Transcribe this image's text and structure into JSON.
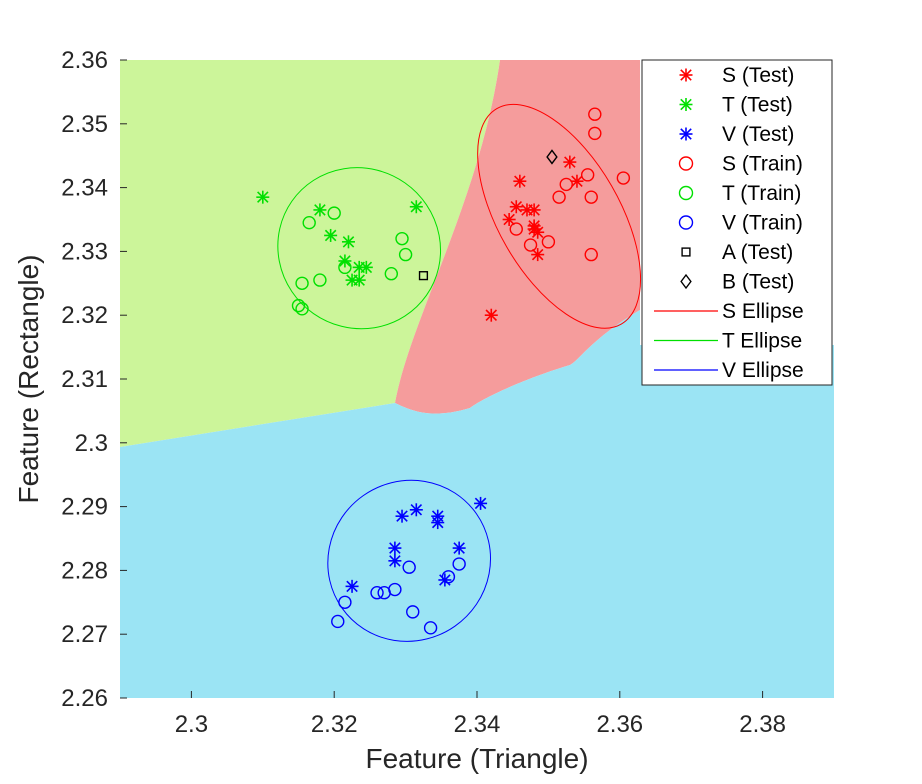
{
  "chart_data": {
    "type": "scatter",
    "title": "",
    "xlabel": "Feature (Triangle)",
    "ylabel": "Feature (Rectangle)",
    "xlim": [
      2.29,
      2.39
    ],
    "ylim": [
      2.26,
      2.36
    ],
    "xticks": [
      "2.3",
      "2.32",
      "2.34",
      "2.36",
      "2.38"
    ],
    "yticks": [
      "2.26",
      "2.27",
      "2.28",
      "2.29",
      "2.3",
      "2.31",
      "2.32",
      "2.33",
      "2.34",
      "2.35",
      "2.36"
    ],
    "grid": false,
    "legend_position": "top-right",
    "regions": [
      {
        "class": "T",
        "color": "#ccf59a"
      },
      {
        "class": "S",
        "color": "#f59c9c"
      },
      {
        "class": "V",
        "color": "#9be4f4"
      }
    ],
    "series": [
      {
        "name": "S (Test)",
        "marker": "asterisk",
        "color": "#ff0000",
        "points": [
          [
            2.342,
            2.32
          ],
          [
            2.3445,
            2.335
          ],
          [
            2.3455,
            2.337
          ],
          [
            2.346,
            2.341
          ],
          [
            2.347,
            2.3365
          ],
          [
            2.348,
            2.334
          ],
          [
            2.348,
            2.3335
          ],
          [
            2.348,
            2.3365
          ],
          [
            2.3485,
            2.333
          ],
          [
            2.3485,
            2.3295
          ],
          [
            2.353,
            2.344
          ],
          [
            2.354,
            2.341
          ]
        ]
      },
      {
        "name": "T (Test)",
        "marker": "asterisk",
        "color": "#00e000",
        "points": [
          [
            2.31,
            2.3385
          ],
          [
            2.318,
            2.3365
          ],
          [
            2.3195,
            2.3325
          ],
          [
            2.322,
            2.3315
          ],
          [
            2.3215,
            2.3285
          ],
          [
            2.3235,
            2.3275
          ],
          [
            2.3235,
            2.3255
          ],
          [
            2.3315,
            2.337
          ],
          [
            2.3245,
            2.3275
          ],
          [
            2.3225,
            2.3255
          ]
        ]
      },
      {
        "name": "V (Test)",
        "marker": "asterisk",
        "color": "#0000ff",
        "points": [
          [
            2.3225,
            2.2775
          ],
          [
            2.3285,
            2.2815
          ],
          [
            2.3285,
            2.2835
          ],
          [
            2.3295,
            2.2885
          ],
          [
            2.3315,
            2.2895
          ],
          [
            2.3345,
            2.2875
          ],
          [
            2.3345,
            2.2885
          ],
          [
            2.3355,
            2.2785
          ],
          [
            2.3375,
            2.2835
          ],
          [
            2.3405,
            2.2905
          ]
        ]
      },
      {
        "name": "S (Train)",
        "marker": "circle",
        "color": "#ff0000",
        "points": [
          [
            2.3455,
            2.3335
          ],
          [
            2.3475,
            2.331
          ],
          [
            2.35,
            2.3315
          ],
          [
            2.3515,
            2.3385
          ],
          [
            2.3525,
            2.3405
          ],
          [
            2.3555,
            2.342
          ],
          [
            2.356,
            2.3385
          ],
          [
            2.3565,
            2.3485
          ],
          [
            2.3565,
            2.3515
          ],
          [
            2.3605,
            2.3415
          ],
          [
            2.356,
            2.3295
          ]
        ]
      },
      {
        "name": "T (Train)",
        "marker": "circle",
        "color": "#00e000",
        "points": [
          [
            2.315,
            2.3215
          ],
          [
            2.3155,
            2.321
          ],
          [
            2.3155,
            2.325
          ],
          [
            2.3165,
            2.3345
          ],
          [
            2.318,
            2.3255
          ],
          [
            2.32,
            2.336
          ],
          [
            2.3215,
            2.3275
          ],
          [
            2.328,
            2.3265
          ],
          [
            2.3295,
            2.332
          ],
          [
            2.33,
            2.3295
          ]
        ]
      },
      {
        "name": "V (Train)",
        "marker": "circle",
        "color": "#0000ff",
        "points": [
          [
            2.3205,
            2.272
          ],
          [
            2.3215,
            2.275
          ],
          [
            2.326,
            2.2765
          ],
          [
            2.327,
            2.2765
          ],
          [
            2.3285,
            2.277
          ],
          [
            2.3305,
            2.2805
          ],
          [
            2.331,
            2.2735
          ],
          [
            2.3335,
            2.271
          ],
          [
            2.336,
            2.279
          ],
          [
            2.3375,
            2.281
          ]
        ]
      },
      {
        "name": "A (Test)",
        "marker": "square",
        "color": "#000000",
        "points": [
          [
            2.3325,
            2.3262
          ]
        ]
      },
      {
        "name": "B (Test)",
        "marker": "diamond",
        "color": "#000000",
        "points": [
          [
            2.3505,
            2.3448
          ]
        ]
      },
      {
        "name": "S Ellipse",
        "marker": "line",
        "color": "#ff0000",
        "ellipse": {
          "center": [
            2.3515,
            2.3355
          ],
          "semi_x": 0.0085,
          "semi_y": 0.0195,
          "angle_deg": -30
        }
      },
      {
        "name": "T Ellipse",
        "marker": "line",
        "color": "#00e000",
        "ellipse": {
          "center": [
            2.3235,
            2.3305
          ],
          "semi_x": 0.0115,
          "semi_y": 0.0125,
          "angle_deg": 35
        }
      },
      {
        "name": "V Ellipse",
        "marker": "line",
        "color": "#0000ff",
        "ellipse": {
          "center": [
            2.3305,
            2.2815
          ],
          "semi_x": 0.0115,
          "semi_y": 0.0125,
          "angle_deg": -35
        }
      }
    ]
  }
}
